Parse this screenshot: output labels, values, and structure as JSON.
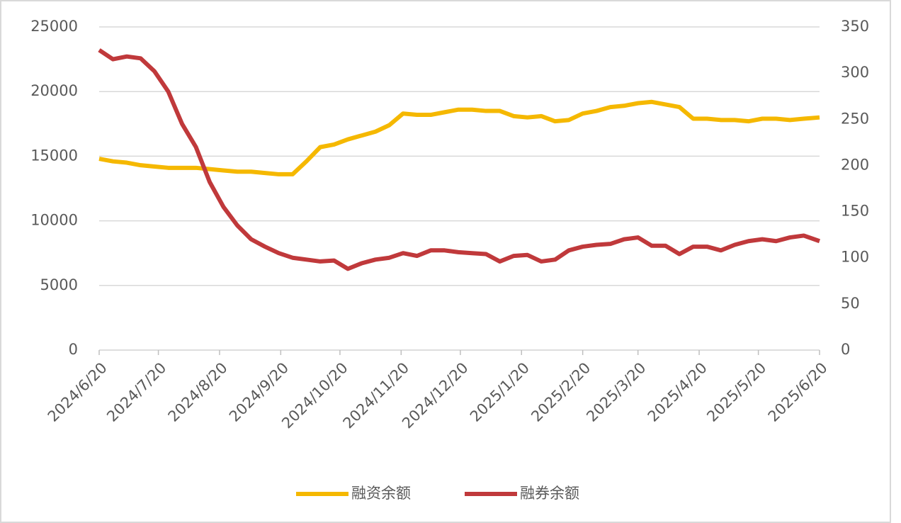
{
  "chart_data": {
    "type": "line",
    "x": [
      "2024/6/20",
      "2024/6/27",
      "2024/7/4",
      "2024/7/11",
      "2024/7/18",
      "2024/7/25",
      "2024/8/1",
      "2024/8/8",
      "2024/8/15",
      "2024/8/22",
      "2024/8/29",
      "2024/9/5",
      "2024/9/12",
      "2024/9/19",
      "2024/9/26",
      "2024/10/3",
      "2024/10/10",
      "2024/10/17",
      "2024/10/24",
      "2024/10/31",
      "2024/11/7",
      "2024/11/14",
      "2024/11/21",
      "2024/11/28",
      "2024/12/5",
      "2024/12/12",
      "2024/12/19",
      "2024/12/26",
      "2025/1/2",
      "2025/1/9",
      "2025/1/16",
      "2025/1/23",
      "2025/1/30",
      "2025/2/6",
      "2025/2/13",
      "2025/2/20",
      "2025/2/27",
      "2025/3/6",
      "2025/3/13",
      "2025/3/20",
      "2025/3/27",
      "2025/4/3",
      "2025/4/10",
      "2025/4/17",
      "2025/4/24",
      "2025/5/1",
      "2025/5/8",
      "2025/5/15",
      "2025/5/22",
      "2025/5/29",
      "2025/6/5",
      "2025/6/12",
      "2025/6/20"
    ],
    "series": [
      {
        "name": "融资余额",
        "color": "#f5b800",
        "axis": "y",
        "values": [
          14800,
          14600,
          14500,
          14300,
          14200,
          14100,
          14100,
          14100,
          14000,
          13900,
          13800,
          13800,
          13700,
          13600,
          13600,
          14600,
          15700,
          15900,
          16300,
          16600,
          16900,
          17400,
          18300,
          18200,
          18200,
          18400,
          18600,
          18600,
          18500,
          18500,
          18100,
          18000,
          18100,
          17700,
          17800,
          18300,
          18500,
          18800,
          18900,
          19100,
          19200,
          19000,
          18800,
          17900,
          17900,
          17800,
          17800,
          17700,
          17900,
          17900,
          17800,
          17900,
          18000
        ]
      },
      {
        "name": "融券余额",
        "color": "#c0393b",
        "axis": "y2",
        "values": [
          325,
          315,
          318,
          316,
          302,
          280,
          245,
          220,
          182,
          155,
          135,
          120,
          112,
          105,
          100,
          98,
          96,
          97,
          88,
          94,
          98,
          100,
          105,
          102,
          108,
          108,
          106,
          105,
          104,
          96,
          102,
          103,
          96,
          98,
          108,
          112,
          114,
          115,
          120,
          122,
          113,
          113,
          104,
          112,
          112,
          108,
          114,
          118,
          120,
          118,
          122,
          124,
          118
        ]
      }
    ],
    "xlim": [
      "2024/6/20",
      "2025/6/20"
    ],
    "xticks": [
      "2024/6/20",
      "2024/7/20",
      "2024/8/20",
      "2024/9/20",
      "2024/10/20",
      "2024/11/20",
      "2024/12/20",
      "2025/1/20",
      "2025/2/20",
      "2025/3/20",
      "2025/4/20",
      "2025/5/20",
      "2025/6/20"
    ],
    "ylim": [
      0,
      25000
    ],
    "yticks": [
      0,
      5000,
      10000,
      15000,
      20000,
      25000
    ],
    "y2lim": [
      0,
      350
    ],
    "y2ticks": [
      0,
      50,
      100,
      150,
      200,
      250,
      300,
      350
    ],
    "grid": true,
    "legend": "bottom"
  }
}
